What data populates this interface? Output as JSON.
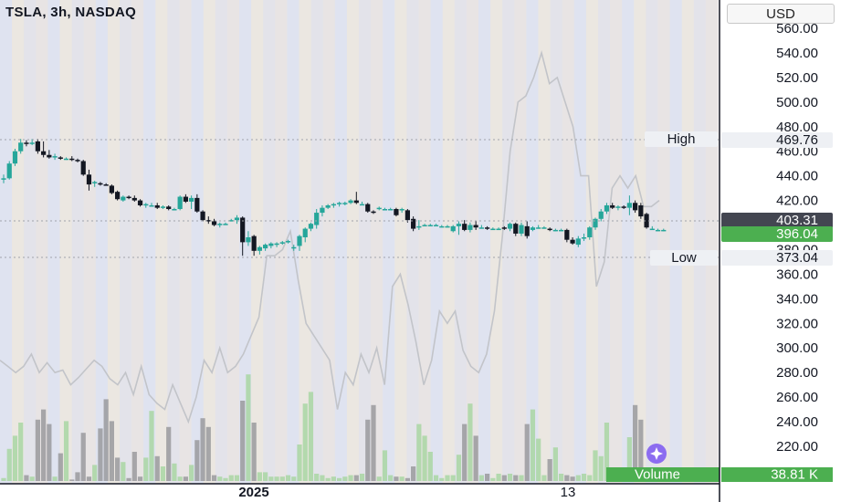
{
  "header": {
    "title": "TSLA, 3h, NASDAQ",
    "currency": "USD"
  },
  "labels": {
    "high": {
      "name": "High",
      "value": "469.76"
    },
    "low": {
      "name": "Low",
      "value": "373.04"
    },
    "current_price": "403.31",
    "last_price": "396.04",
    "volume_label": "Volume",
    "volume_value": "38.81 K"
  },
  "colors": {
    "up": "#26a69a",
    "down": "#131722",
    "overlay": "#c2c4c9",
    "last_price_bg": "#4caf50",
    "current_price_bg": "#434651"
  },
  "chart_data": {
    "type": "candlestick",
    "ylim": [
      205,
      570
    ],
    "yticks": [
      220,
      240,
      260,
      280,
      300,
      320,
      340,
      360,
      380,
      400,
      420,
      440,
      460,
      480,
      500,
      520,
      540,
      560
    ],
    "x_labels": [
      "2025",
      "13"
    ],
    "candles": [
      {
        "o": 437,
        "h": 441,
        "l": 434,
        "c": 438
      },
      {
        "o": 438,
        "h": 452,
        "l": 437,
        "c": 450
      },
      {
        "o": 450,
        "h": 462,
        "l": 448,
        "c": 460
      },
      {
        "o": 460,
        "h": 470,
        "l": 458,
        "c": 467
      },
      {
        "o": 467,
        "h": 469,
        "l": 464,
        "c": 466
      },
      {
        "o": 466,
        "h": 470,
        "l": 465,
        "c": 467
      },
      {
        "o": 468,
        "h": 470,
        "l": 458,
        "c": 460
      },
      {
        "o": 460,
        "h": 468,
        "l": 455,
        "c": 457
      },
      {
        "o": 457,
        "h": 461,
        "l": 454,
        "c": 455
      },
      {
        "o": 455,
        "h": 458,
        "l": 453,
        "c": 456
      },
      {
        "o": 455,
        "h": 456,
        "l": 453,
        "c": 454
      },
      {
        "o": 454,
        "h": 455,
        "l": 453,
        "c": 454
      },
      {
        "o": 454,
        "h": 456,
        "l": 452,
        "c": 453
      },
      {
        "o": 453,
        "h": 454,
        "l": 451,
        "c": 452
      },
      {
        "o": 452,
        "h": 453,
        "l": 440,
        "c": 441
      },
      {
        "o": 441,
        "h": 445,
        "l": 428,
        "c": 433
      },
      {
        "o": 434,
        "h": 436,
        "l": 431,
        "c": 435
      },
      {
        "o": 434,
        "h": 435,
        "l": 432,
        "c": 433
      },
      {
        "o": 433,
        "h": 434,
        "l": 432,
        "c": 432
      },
      {
        "o": 432,
        "h": 433,
        "l": 425,
        "c": 426
      },
      {
        "o": 427,
        "h": 428,
        "l": 420,
        "c": 421
      },
      {
        "o": 420,
        "h": 424,
        "l": 419,
        "c": 423
      },
      {
        "o": 423,
        "h": 424,
        "l": 421,
        "c": 422
      },
      {
        "o": 422,
        "h": 424,
        "l": 419,
        "c": 420
      },
      {
        "o": 420,
        "h": 421,
        "l": 415,
        "c": 416
      },
      {
        "o": 416,
        "h": 418,
        "l": 414,
        "c": 417
      },
      {
        "o": 416,
        "h": 418,
        "l": 415,
        "c": 416
      },
      {
        "o": 416,
        "h": 418,
        "l": 413,
        "c": 414
      },
      {
        "o": 414,
        "h": 416,
        "l": 413,
        "c": 415
      },
      {
        "o": 415,
        "h": 416,
        "l": 412,
        "c": 413
      },
      {
        "o": 413,
        "h": 414,
        "l": 412,
        "c": 413
      },
      {
        "o": 413,
        "h": 424,
        "l": 412,
        "c": 423
      },
      {
        "o": 423,
        "h": 425,
        "l": 418,
        "c": 419
      },
      {
        "o": 419,
        "h": 424,
        "l": 413,
        "c": 422
      },
      {
        "o": 422,
        "h": 425,
        "l": 410,
        "c": 411
      },
      {
        "o": 411,
        "h": 412,
        "l": 403,
        "c": 404
      },
      {
        "o": 404,
        "h": 407,
        "l": 401,
        "c": 403
      },
      {
        "o": 403,
        "h": 405,
        "l": 399,
        "c": 400
      },
      {
        "o": 400,
        "h": 402,
        "l": 398,
        "c": 401
      },
      {
        "o": 401,
        "h": 402,
        "l": 400,
        "c": 401
      },
      {
        "o": 404,
        "h": 405,
        "l": 403,
        "c": 404
      },
      {
        "o": 404,
        "h": 408,
        "l": 401,
        "c": 406
      },
      {
        "o": 406,
        "h": 407,
        "l": 375,
        "c": 386
      },
      {
        "o": 386,
        "h": 395,
        "l": 383,
        "c": 390
      },
      {
        "o": 391,
        "h": 392,
        "l": 375,
        "c": 379
      },
      {
        "o": 379,
        "h": 383,
        "l": 376,
        "c": 382
      },
      {
        "o": 381,
        "h": 385,
        "l": 379,
        "c": 384
      },
      {
        "o": 383,
        "h": 386,
        "l": 381,
        "c": 385
      },
      {
        "o": 384,
        "h": 386,
        "l": 382,
        "c": 385
      },
      {
        "o": 385,
        "h": 387,
        "l": 384,
        "c": 386
      },
      {
        "o": 386,
        "h": 388,
        "l": 385,
        "c": 387
      },
      {
        "o": 381,
        "h": 384,
        "l": 379,
        "c": 382
      },
      {
        "o": 383,
        "h": 392,
        "l": 379,
        "c": 391
      },
      {
        "o": 390,
        "h": 398,
        "l": 386,
        "c": 397
      },
      {
        "o": 397,
        "h": 402,
        "l": 395,
        "c": 401
      },
      {
        "o": 400,
        "h": 413,
        "l": 397,
        "c": 410
      },
      {
        "o": 410,
        "h": 416,
        "l": 407,
        "c": 414
      },
      {
        "o": 414,
        "h": 417,
        "l": 413,
        "c": 416
      },
      {
        "o": 416,
        "h": 418,
        "l": 414,
        "c": 417
      },
      {
        "o": 417,
        "h": 419,
        "l": 415,
        "c": 418
      },
      {
        "o": 417,
        "h": 419,
        "l": 416,
        "c": 418
      },
      {
        "o": 418,
        "h": 421,
        "l": 417,
        "c": 420
      },
      {
        "o": 420,
        "h": 427,
        "l": 417,
        "c": 418
      },
      {
        "o": 417,
        "h": 419,
        "l": 416,
        "c": 417
      },
      {
        "o": 417,
        "h": 418,
        "l": 410,
        "c": 411
      },
      {
        "o": 411,
        "h": 412,
        "l": 409,
        "c": 410
      },
      {
        "o": 413,
        "h": 415,
        "l": 412,
        "c": 414
      },
      {
        "o": 413,
        "h": 414,
        "l": 412,
        "c": 413
      },
      {
        "o": 413,
        "h": 414,
        "l": 412,
        "c": 413
      },
      {
        "o": 413,
        "h": 414,
        "l": 407,
        "c": 408
      },
      {
        "o": 412,
        "h": 414,
        "l": 410,
        "c": 413
      },
      {
        "o": 412,
        "h": 413,
        "l": 402,
        "c": 404
      },
      {
        "o": 405,
        "h": 407,
        "l": 395,
        "c": 397
      },
      {
        "o": 398,
        "h": 404,
        "l": 396,
        "c": 399
      },
      {
        "o": 400,
        "h": 401,
        "l": 399,
        "c": 400
      },
      {
        "o": 400,
        "h": 401,
        "l": 399,
        "c": 400
      },
      {
        "o": 400,
        "h": 401,
        "l": 399,
        "c": 400
      },
      {
        "o": 399,
        "h": 400,
        "l": 398,
        "c": 399
      },
      {
        "o": 399,
        "h": 400,
        "l": 398,
        "c": 399
      },
      {
        "o": 395,
        "h": 400,
        "l": 394,
        "c": 399
      },
      {
        "o": 399,
        "h": 403,
        "l": 392,
        "c": 401
      },
      {
        "o": 401,
        "h": 404,
        "l": 395,
        "c": 396
      },
      {
        "o": 396,
        "h": 402,
        "l": 394,
        "c": 400
      },
      {
        "o": 400,
        "h": 403,
        "l": 396,
        "c": 398
      },
      {
        "o": 398,
        "h": 400,
        "l": 397,
        "c": 398
      },
      {
        "o": 398,
        "h": 399,
        "l": 396,
        "c": 397
      },
      {
        "o": 397,
        "h": 398,
        "l": 396,
        "c": 397
      },
      {
        "o": 397,
        "h": 398,
        "l": 396,
        "c": 397
      },
      {
        "o": 398,
        "h": 399,
        "l": 396,
        "c": 397
      },
      {
        "o": 397,
        "h": 402,
        "l": 395,
        "c": 401
      },
      {
        "o": 401,
        "h": 402,
        "l": 391,
        "c": 393
      },
      {
        "o": 393,
        "h": 402,
        "l": 391,
        "c": 400
      },
      {
        "o": 399,
        "h": 403,
        "l": 389,
        "c": 391
      },
      {
        "o": 396,
        "h": 399,
        "l": 395,
        "c": 398
      },
      {
        "o": 398,
        "h": 400,
        "l": 397,
        "c": 398
      },
      {
        "o": 398,
        "h": 399,
        "l": 397,
        "c": 398
      },
      {
        "o": 397,
        "h": 398,
        "l": 395,
        "c": 396
      },
      {
        "o": 396,
        "h": 397,
        "l": 395,
        "c": 396
      },
      {
        "o": 396,
        "h": 397,
        "l": 395,
        "c": 396
      },
      {
        "o": 396,
        "h": 397,
        "l": 386,
        "c": 388
      },
      {
        "o": 388,
        "h": 390,
        "l": 384,
        "c": 385
      },
      {
        "o": 384,
        "h": 391,
        "l": 382,
        "c": 389
      },
      {
        "o": 389,
        "h": 393,
        "l": 387,
        "c": 390
      },
      {
        "o": 390,
        "h": 399,
        "l": 388,
        "c": 398
      },
      {
        "o": 398,
        "h": 406,
        "l": 396,
        "c": 405
      },
      {
        "o": 405,
        "h": 413,
        "l": 403,
        "c": 411
      },
      {
        "o": 411,
        "h": 418,
        "l": 409,
        "c": 416
      },
      {
        "o": 416,
        "h": 418,
        "l": 413,
        "c": 414
      },
      {
        "o": 414,
        "h": 416,
        "l": 412,
        "c": 415
      },
      {
        "o": 415,
        "h": 416,
        "l": 413,
        "c": 414
      },
      {
        "o": 414,
        "h": 424,
        "l": 408,
        "c": 418
      },
      {
        "o": 418,
        "h": 420,
        "l": 410,
        "c": 412
      },
      {
        "o": 416,
        "h": 418,
        "l": 405,
        "c": 407
      },
      {
        "o": 409,
        "h": 410,
        "l": 397,
        "c": 398
      },
      {
        "o": 397,
        "h": 399,
        "l": 396,
        "c": 397
      },
      {
        "o": 396,
        "h": 397,
        "l": 395,
        "c": 396
      },
      {
        "o": 396,
        "h": 397,
        "l": 395,
        "c": 396
      }
    ],
    "volume": [
      0.02,
      0.22,
      0.31,
      0.4,
      0.04,
      0.03,
      0.42,
      0.49,
      0.39,
      0.03,
      0.19,
      0.41,
      0.01,
      0.06,
      0.33,
      0.03,
      0.11,
      0.36,
      0.56,
      0.41,
      0.16,
      0.13,
      0.02,
      0.2,
      0.03,
      0.16,
      0.48,
      0.17,
      0.1,
      0.37,
      0.12,
      0.03,
      0.03,
      0.11,
      0.28,
      0.43,
      0.37,
      0.04,
      0.03,
      0.02,
      0.04,
      0.04,
      0.55,
      0.73,
      0.4,
      0.06,
      0.06,
      0.03,
      0.03,
      0.03,
      0.04,
      0.03,
      0.25,
      0.53,
      0.61,
      0.05,
      0.04,
      0.02,
      0.03,
      0.02,
      0.03,
      0.04,
      0.04,
      0.05,
      0.42,
      0.52,
      0.03,
      0.21,
      0.04,
      0.03,
      0.03,
      0.02,
      0.1,
      0.39,
      0.31,
      0.2,
      0.04,
      0.02,
      0.04,
      0.04,
      0.18,
      0.39,
      0.53,
      0.31,
      0.04,
      0.05,
      0.02,
      0.05,
      0.04,
      0.05,
      0.04,
      0.04,
      0.39,
      0.49,
      0.29,
      0.04,
      0.15,
      0.23,
      0.05,
      0.04,
      0.03,
      0.04,
      0.05,
      0.04,
      0.21,
      0.17,
      0.4,
      0.07,
      0.06,
      0.04,
      0.3,
      0.52,
      0.42,
      0.04,
      0.04,
      0.04
    ],
    "overlay_line": [
      290,
      285,
      280,
      285,
      295,
      280,
      288,
      280,
      282,
      270,
      276,
      283,
      290,
      285,
      275,
      270,
      280,
      262,
      285,
      262,
      255,
      250,
      270,
      255,
      240,
      260,
      290,
      280,
      300,
      280,
      285,
      295,
      310,
      325,
      375,
      375,
      380,
      395,
      355,
      320,
      310,
      300,
      290,
      250,
      280,
      270,
      295,
      280,
      300,
      270,
      350,
      360,
      335,
      305,
      270,
      290,
      330,
      320,
      330,
      298,
      285,
      280,
      295,
      330,
      390,
      460,
      500,
      505,
      520,
      540,
      515,
      520,
      500,
      480,
      440,
      440,
      350,
      370,
      430,
      440,
      430,
      440,
      415,
      415,
      420
    ],
    "overlay_ylim_source": "right axis"
  }
}
